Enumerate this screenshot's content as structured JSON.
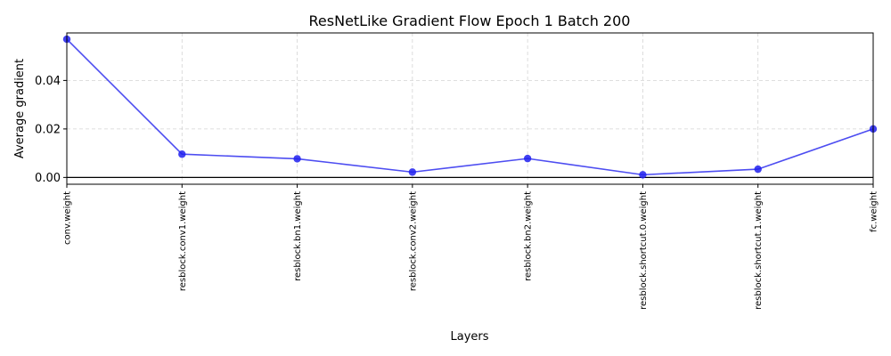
{
  "chart_data": {
    "type": "line",
    "title": "ResNetLike Gradient Flow Epoch 1 Batch 200",
    "xlabel": "Layers",
    "ylabel": "Average gradient",
    "categories": [
      "conv.weight",
      "resblock.conv1.weight",
      "resblock.bn1.weight",
      "resblock.conv2.weight",
      "resblock.bn2.weight",
      "resblock.shortcut.0.weight",
      "resblock.shortcut.1.weight",
      "fc.weight"
    ],
    "series": [
      {
        "values": [
          0.057,
          0.0096,
          0.0077,
          0.0022,
          0.0078,
          0.0011,
          0.0034,
          0.02
        ],
        "color": "#2020ee"
      }
    ],
    "yticks": [
      "0.00",
      "0.02",
      "0.04"
    ],
    "ytick_values": [
      0,
      0.02,
      0.04
    ],
    "ylim": [
      -0.0028,
      0.0596
    ],
    "hline_y": 0,
    "grid": true,
    "x_tick_rotation": "vertical"
  }
}
